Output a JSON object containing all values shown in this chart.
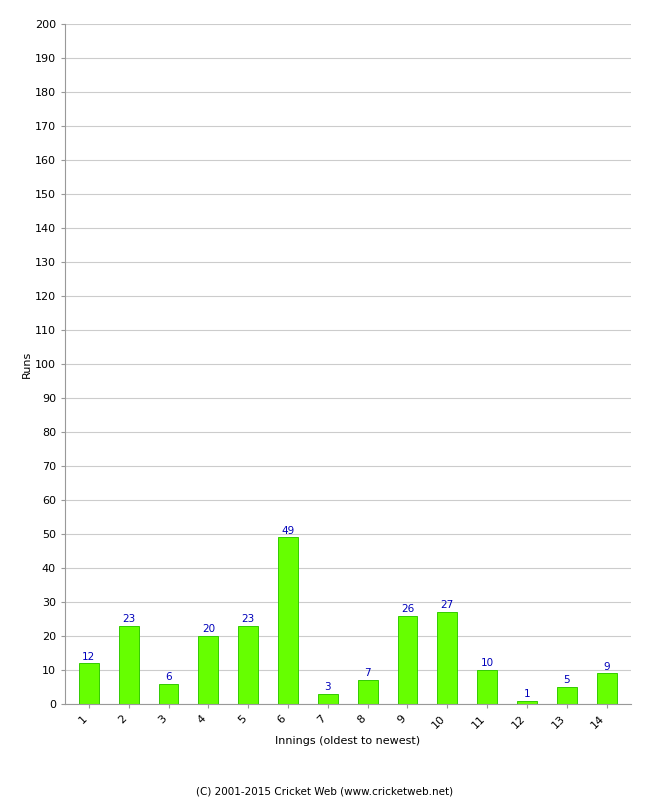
{
  "xlabel": "Innings (oldest to newest)",
  "ylabel": "Runs",
  "categories": [
    "1",
    "2",
    "3",
    "4",
    "5",
    "6",
    "7",
    "8",
    "9",
    "10",
    "11",
    "12",
    "13",
    "14"
  ],
  "values": [
    12,
    23,
    6,
    20,
    23,
    49,
    3,
    7,
    26,
    27,
    10,
    1,
    5,
    9
  ],
  "bar_color": "#66ff00",
  "bar_edge_color": "#33cc00",
  "label_color": "#0000bb",
  "ylim": [
    0,
    200
  ],
  "yticks": [
    0,
    10,
    20,
    30,
    40,
    50,
    60,
    70,
    80,
    90,
    100,
    110,
    120,
    130,
    140,
    150,
    160,
    170,
    180,
    190,
    200
  ],
  "grid_color": "#cccccc",
  "background_color": "#ffffff",
  "footer": "(C) 2001-2015 Cricket Web (www.cricketweb.net)",
  "label_fontsize": 7.5,
  "axis_tick_fontsize": 8,
  "axis_label_fontsize": 8,
  "footer_fontsize": 7.5,
  "bar_width": 0.5
}
